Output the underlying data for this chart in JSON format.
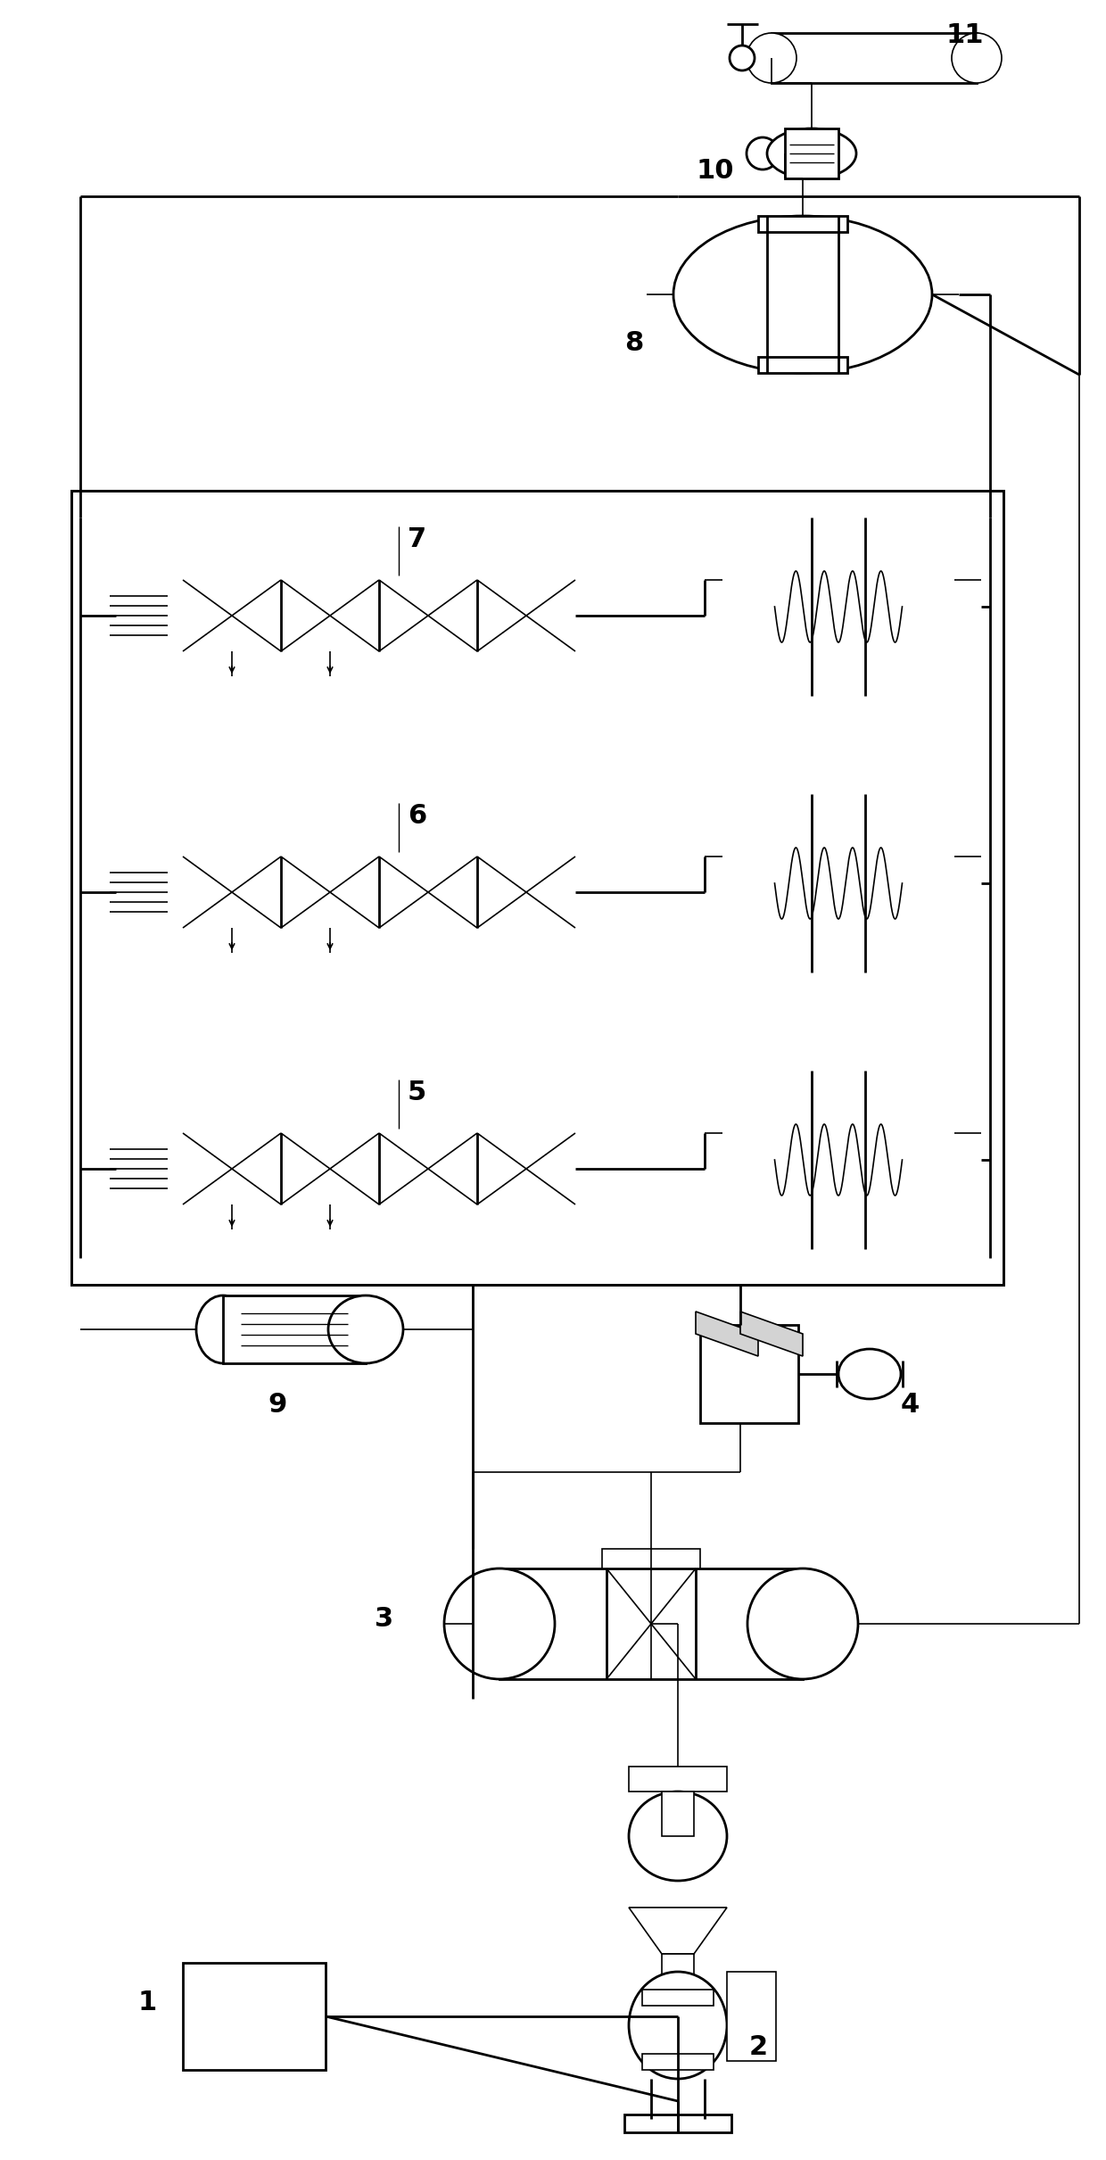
{
  "bg_color": "#ffffff",
  "lw": 1.2,
  "lw2": 2.0,
  "fig_width": 12.4,
  "fig_height": 24.21,
  "dpi": 100
}
